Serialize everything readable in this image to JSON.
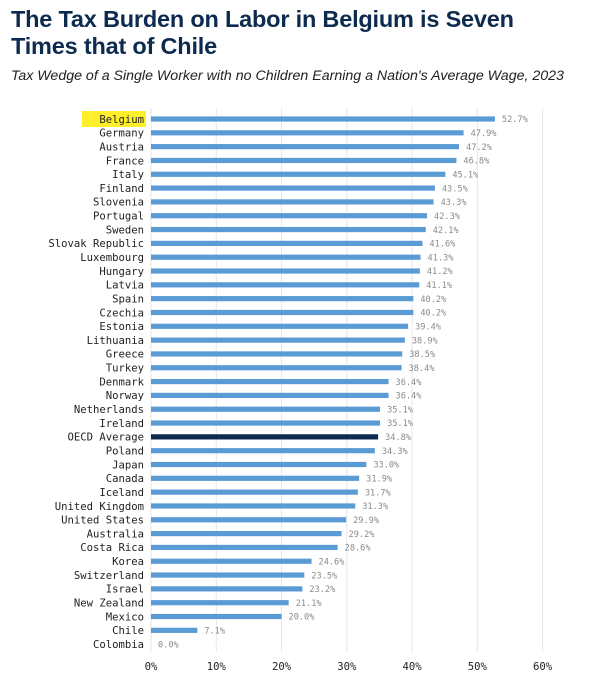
{
  "title": "The Tax Burden on Labor in Belgium is Seven Times that of Chile",
  "subtitle": "Tax Wedge of a Single Worker with no Children Earning a Nation's Average Wage, 2023",
  "chart_data": {
    "type": "bar",
    "orientation": "horizontal",
    "title": "The Tax Burden on Labor in Belgium is Seven Times that of Chile",
    "subtitle": "Tax Wedge of a Single Worker with no Children Earning a Nation's Average Wage, 2023",
    "xlabel": "",
    "ylabel": "",
    "xlim": [
      0,
      60
    ],
    "x_ticks": [
      0,
      10,
      20,
      30,
      40,
      50,
      60
    ],
    "x_tick_labels": [
      "0%",
      "10%",
      "20%",
      "30%",
      "40%",
      "50%",
      "60%"
    ],
    "grid": "vertical",
    "categories": [
      "Belgium",
      "Germany",
      "Austria",
      "France",
      "Italy",
      "Finland",
      "Slovenia",
      "Portugal",
      "Sweden",
      "Slovak Republic",
      "Luxembourg",
      "Hungary",
      "Latvia",
      "Spain",
      "Czechia",
      "Estonia",
      "Lithuania",
      "Greece",
      "Turkey",
      "Denmark",
      "Norway",
      "Netherlands",
      "Ireland",
      "OECD Average",
      "Poland",
      "Japan",
      "Canada",
      "Iceland",
      "United Kingdom",
      "United States",
      "Australia",
      "Costa Rica",
      "Korea",
      "Switzerland",
      "Israel",
      "New Zealand",
      "Mexico",
      "Chile",
      "Colombia"
    ],
    "values": [
      52.7,
      47.9,
      47.2,
      46.8,
      45.1,
      43.5,
      43.3,
      42.3,
      42.1,
      41.6,
      41.3,
      41.2,
      41.1,
      40.2,
      40.2,
      39.4,
      38.9,
      38.5,
      38.4,
      36.4,
      36.4,
      35.1,
      35.1,
      34.8,
      34.3,
      33.0,
      31.9,
      31.7,
      31.3,
      29.9,
      29.2,
      28.6,
      24.6,
      23.5,
      23.2,
      21.1,
      20.0,
      7.1,
      0.0
    ],
    "value_labels": [
      "52.7%",
      "47.9%",
      "47.2%",
      "46.8%",
      "45.1%",
      "43.5%",
      "43.3%",
      "42.3%",
      "42.1%",
      "41.6%",
      "41.3%",
      "41.2%",
      "41.1%",
      "40.2%",
      "40.2%",
      "39.4%",
      "38.9%",
      "38.5%",
      "38.4%",
      "36.4%",
      "36.4%",
      "35.1%",
      "35.1%",
      "34.8%",
      "34.3%",
      "33.0%",
      "31.9%",
      "31.7%",
      "31.3%",
      "29.9%",
      "29.2%",
      "28.6%",
      "24.6%",
      "23.5%",
      "23.2%",
      "21.1%",
      "20.0%",
      "7.1%",
      "0.0%"
    ],
    "highlighted_category": "Belgium",
    "highlight_color": "#ffef2b",
    "bar_color": "#5b9bd5",
    "emphasized_category": "OECD Average",
    "emphasized_bar_color": "#0d2a4f"
  }
}
